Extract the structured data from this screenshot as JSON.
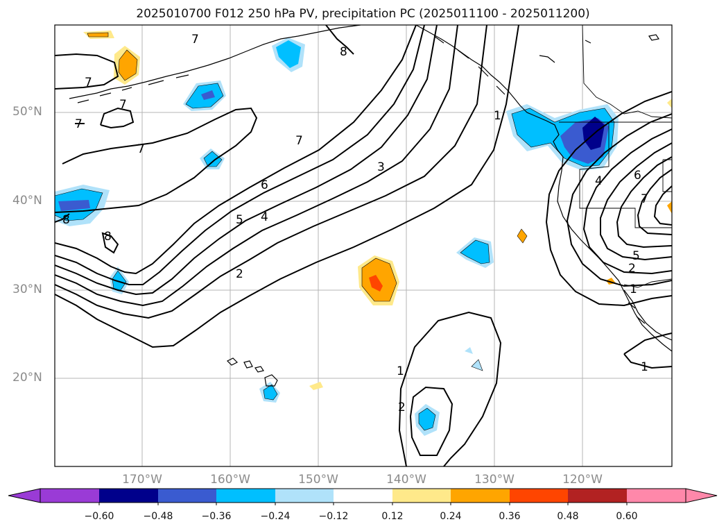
{
  "title": "2025010700 F012 250 hPa PV, precipitation PC (2025011100 - 2025011200)",
  "lat_labels": [
    "50°N",
    "40°N",
    "30°N",
    "20°N"
  ],
  "lon_labels": [
    "170°W",
    "160°W",
    "150°W",
    "140°W",
    "130°W",
    "120°W"
  ],
  "contour_labels": [
    "7",
    "7",
    "7",
    "7",
    "7",
    "7",
    "8",
    "8",
    "8",
    "6",
    "5",
    "4",
    "3",
    "2",
    "1",
    "1",
    "2",
    "1",
    "6",
    "4",
    "7",
    "5",
    "2",
    "1"
  ],
  "colorbar": {
    "ticks": [
      "−0.60",
      "−0.48",
      "−0.36",
      "−0.24",
      "−0.12",
      "0.12",
      "0.24",
      "0.36",
      "0.48",
      "0.60"
    ],
    "colors": [
      "#9a3bd6",
      "#00008b",
      "#3a5bd0",
      "#00bfff",
      "#b0e2fa",
      "#ffffff",
      "#ffe98a",
      "#ffa500",
      "#ff4500",
      "#b22222",
      "#ff88aa"
    ]
  },
  "colors": {
    "coast": "#000000",
    "contour": "#000000",
    "grid": "#b4b4b4"
  }
}
